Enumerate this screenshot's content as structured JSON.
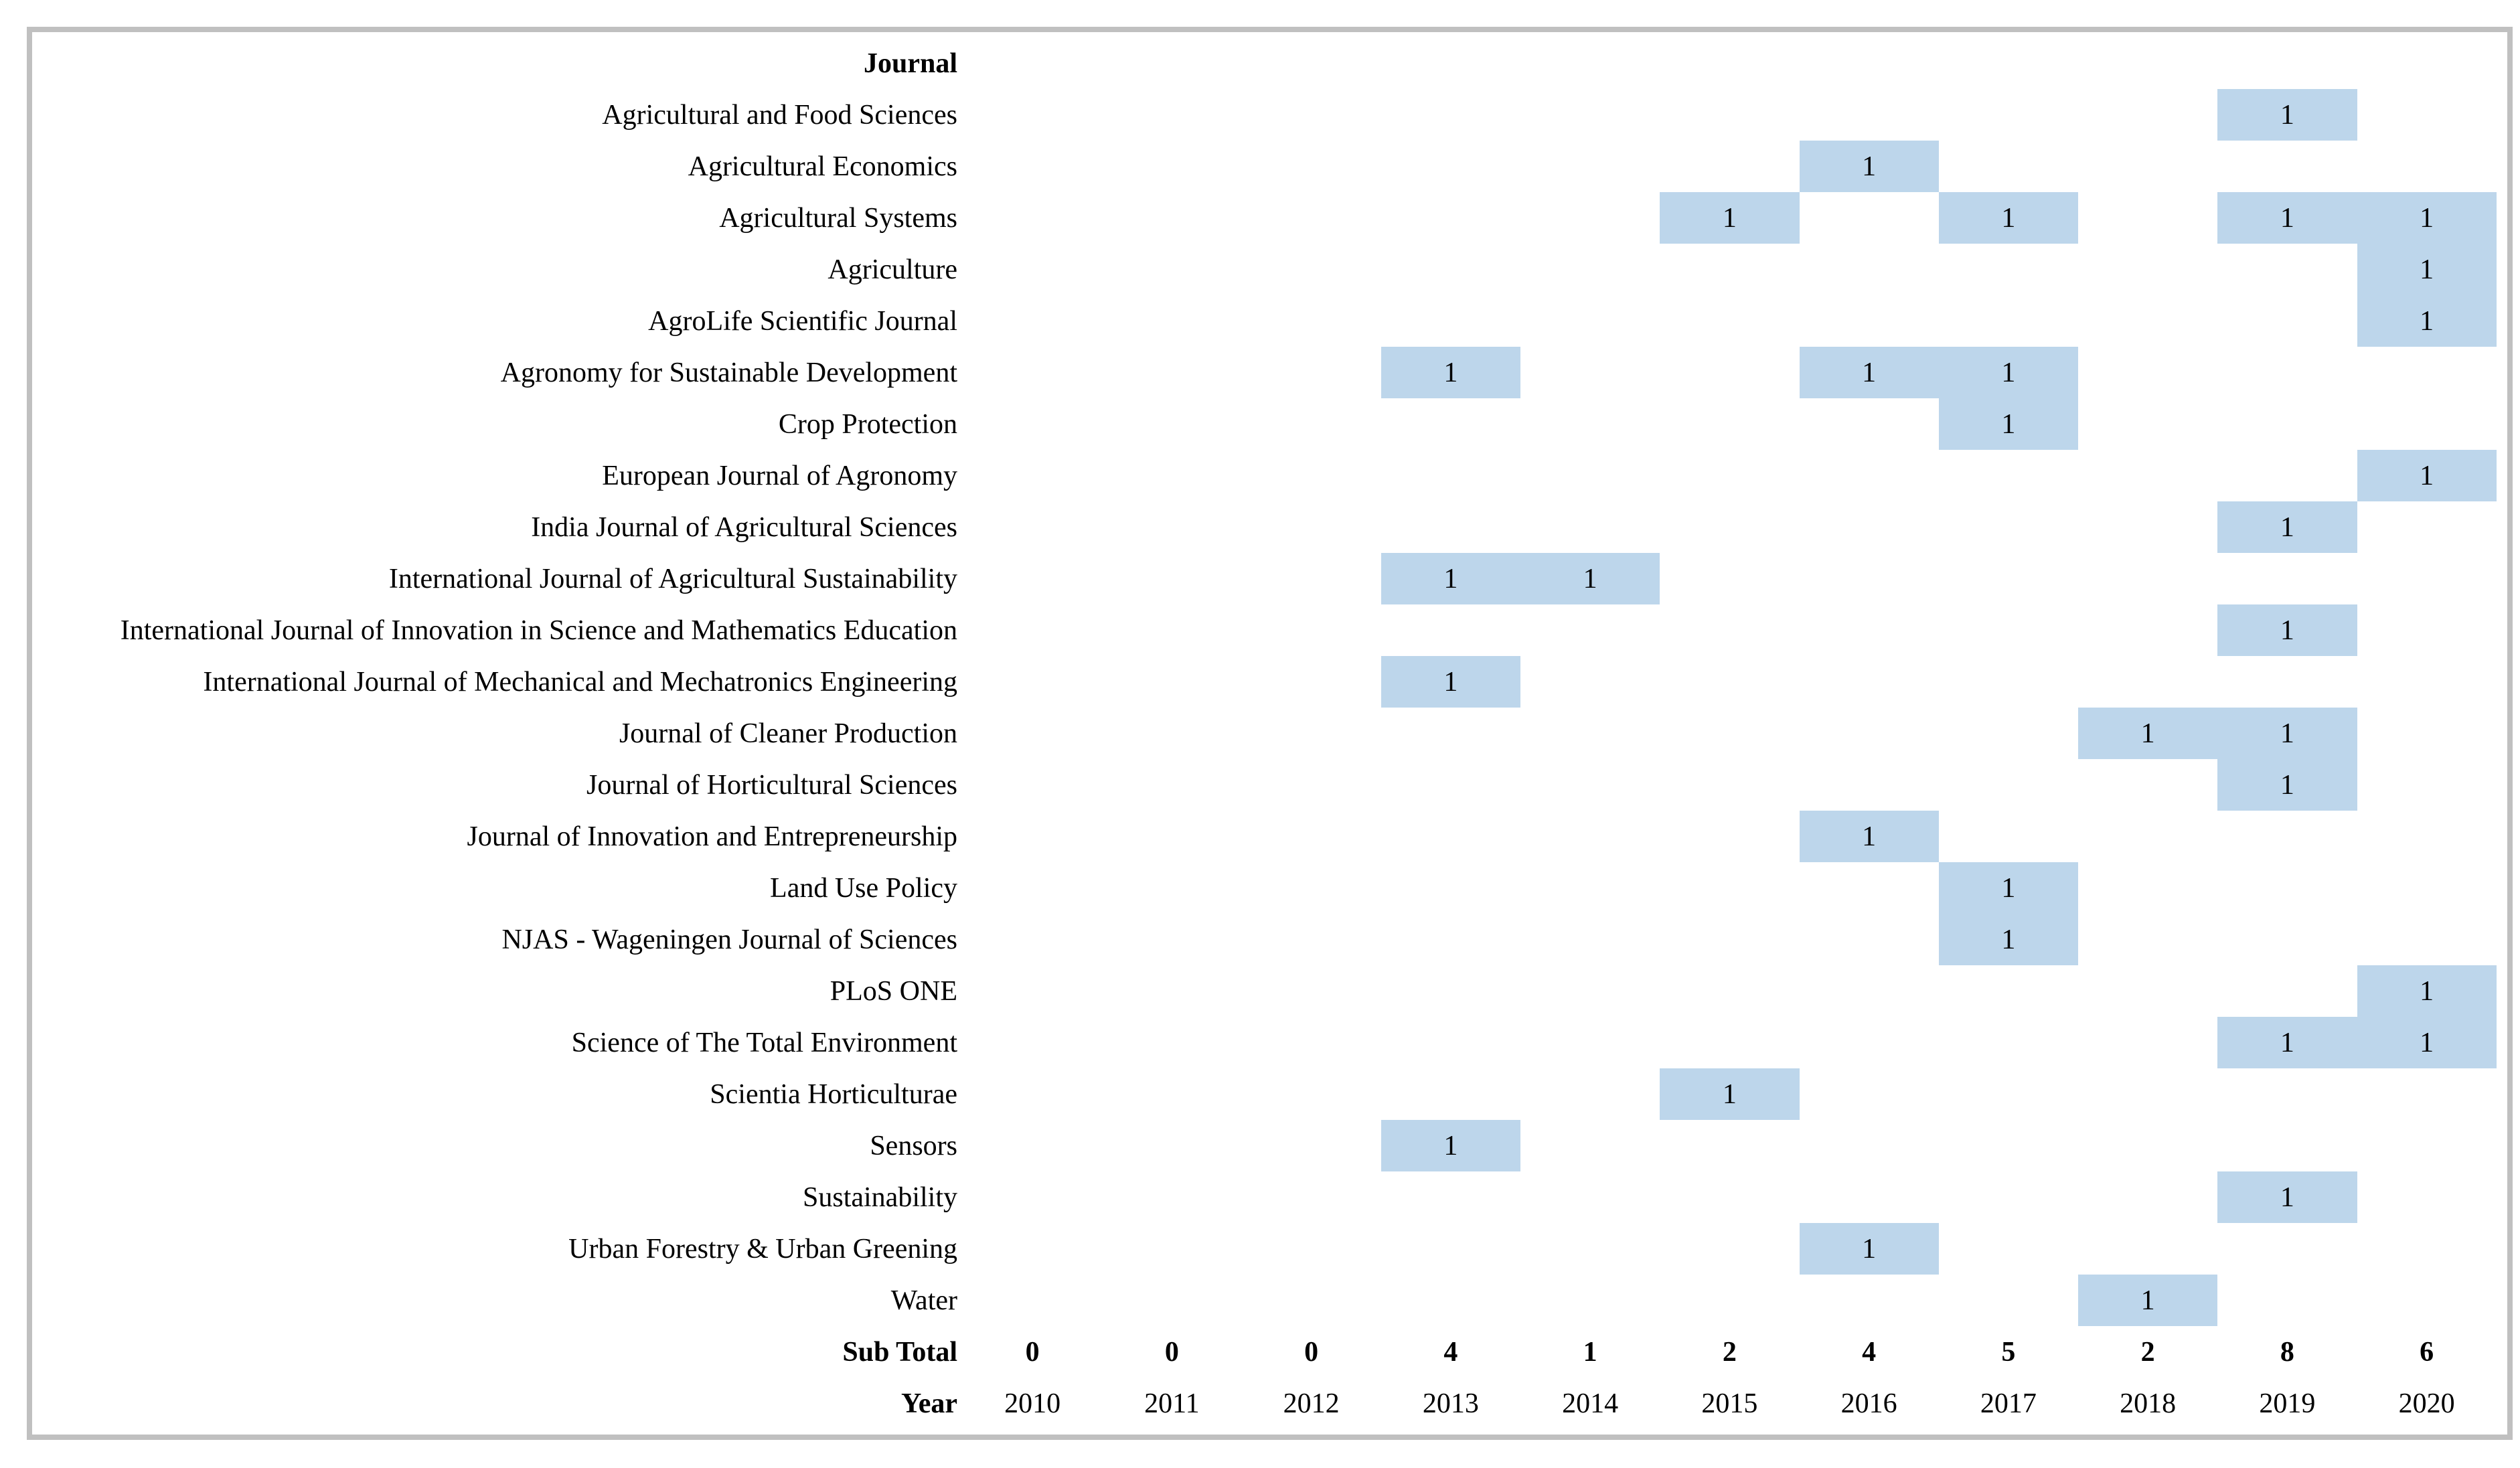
{
  "chart_data": {
    "type": "heatmap",
    "row_header_label": "Journal",
    "sub_total_label": "Sub Total",
    "year_axis_label": "Year",
    "cell_display_value": "1",
    "years": [
      2010,
      2011,
      2012,
      2013,
      2014,
      2015,
      2016,
      2017,
      2018,
      2019,
      2020
    ],
    "rows": [
      {
        "journal": "Agricultural and Food Sciences",
        "counts": [
          0,
          0,
          0,
          0,
          0,
          0,
          0,
          0,
          0,
          1,
          0
        ]
      },
      {
        "journal": "Agricultural Economics",
        "counts": [
          0,
          0,
          0,
          0,
          0,
          0,
          1,
          0,
          0,
          0,
          0
        ]
      },
      {
        "journal": "Agricultural Systems",
        "counts": [
          0,
          0,
          0,
          0,
          0,
          1,
          0,
          1,
          0,
          1,
          1
        ]
      },
      {
        "journal": "Agriculture",
        "counts": [
          0,
          0,
          0,
          0,
          0,
          0,
          0,
          0,
          0,
          0,
          1
        ]
      },
      {
        "journal": "AgroLife Scientific Journal",
        "counts": [
          0,
          0,
          0,
          0,
          0,
          0,
          0,
          0,
          0,
          0,
          1
        ]
      },
      {
        "journal": "Agronomy for Sustainable Development",
        "counts": [
          0,
          0,
          0,
          1,
          0,
          0,
          1,
          1,
          0,
          0,
          0
        ]
      },
      {
        "journal": "Crop Protection",
        "counts": [
          0,
          0,
          0,
          0,
          0,
          0,
          0,
          1,
          0,
          0,
          0
        ]
      },
      {
        "journal": "European Journal of Agronomy",
        "counts": [
          0,
          0,
          0,
          0,
          0,
          0,
          0,
          0,
          0,
          0,
          1
        ]
      },
      {
        "journal": "India Journal of Agricultural Sciences",
        "counts": [
          0,
          0,
          0,
          0,
          0,
          0,
          0,
          0,
          0,
          1,
          0
        ]
      },
      {
        "journal": "International Journal of Agricultural Sustainability",
        "counts": [
          0,
          0,
          0,
          1,
          1,
          0,
          0,
          0,
          0,
          0,
          0
        ]
      },
      {
        "journal": "International Journal of Innovation in Science and Mathematics Education",
        "counts": [
          0,
          0,
          0,
          0,
          0,
          0,
          0,
          0,
          0,
          1,
          0
        ]
      },
      {
        "journal": "International Journal of Mechanical and Mechatronics Engineering",
        "counts": [
          0,
          0,
          0,
          1,
          0,
          0,
          0,
          0,
          0,
          0,
          0
        ]
      },
      {
        "journal": "Journal of Cleaner Production",
        "counts": [
          0,
          0,
          0,
          0,
          0,
          0,
          0,
          0,
          1,
          1,
          0
        ]
      },
      {
        "journal": "Journal of Horticultural Sciences",
        "counts": [
          0,
          0,
          0,
          0,
          0,
          0,
          0,
          0,
          0,
          1,
          0
        ]
      },
      {
        "journal": "Journal of Innovation and Entrepreneurship",
        "counts": [
          0,
          0,
          0,
          0,
          0,
          0,
          1,
          0,
          0,
          0,
          0
        ]
      },
      {
        "journal": "Land Use Policy",
        "counts": [
          0,
          0,
          0,
          0,
          0,
          0,
          0,
          1,
          0,
          0,
          0
        ]
      },
      {
        "journal": "NJAS - Wageningen Journal of Sciences",
        "counts": [
          0,
          0,
          0,
          0,
          0,
          0,
          0,
          1,
          0,
          0,
          0
        ]
      },
      {
        "journal": "PLoS ONE",
        "counts": [
          0,
          0,
          0,
          0,
          0,
          0,
          0,
          0,
          0,
          0,
          1
        ]
      },
      {
        "journal": "Science of The Total Environment",
        "counts": [
          0,
          0,
          0,
          0,
          0,
          0,
          0,
          0,
          0,
          1,
          1
        ]
      },
      {
        "journal": "Scientia Horticulturae",
        "counts": [
          0,
          0,
          0,
          0,
          0,
          1,
          0,
          0,
          0,
          0,
          0
        ]
      },
      {
        "journal": "Sensors",
        "counts": [
          0,
          0,
          0,
          1,
          0,
          0,
          0,
          0,
          0,
          0,
          0
        ]
      },
      {
        "journal": "Sustainability",
        "counts": [
          0,
          0,
          0,
          0,
          0,
          0,
          0,
          0,
          0,
          1,
          0
        ]
      },
      {
        "journal": "Urban Forestry & Urban Greening",
        "counts": [
          0,
          0,
          0,
          0,
          0,
          0,
          1,
          0,
          0,
          0,
          0
        ]
      },
      {
        "journal": "Water",
        "counts": [
          0,
          0,
          0,
          0,
          0,
          0,
          0,
          0,
          1,
          0,
          0
        ]
      }
    ],
    "sub_totals": [
      0,
      0,
      0,
      4,
      1,
      2,
      4,
      5,
      2,
      8,
      6
    ],
    "layout": {
      "legend": false,
      "gridlines": false,
      "labels_alignment": "right",
      "values_alignment": "center"
    },
    "colors": {
      "cell_fill": "#BDD6EB",
      "frame_border": "#C0C0C0",
      "text": "#000000",
      "background": "#FFFFFF"
    }
  }
}
